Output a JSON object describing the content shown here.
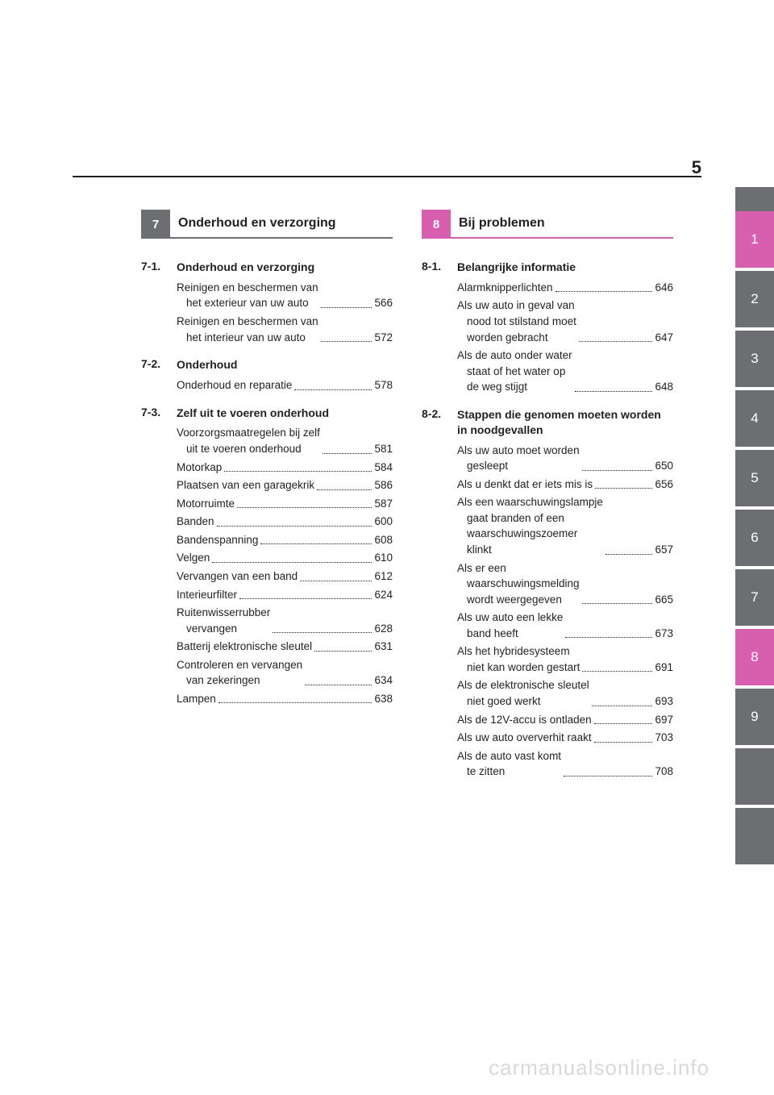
{
  "page_number": "5",
  "watermark": "carmanualsonline.info",
  "colors": {
    "grey": "#6d6e71",
    "pink": "#d85fb0",
    "text": "#231f20",
    "watermark": "#d9d9d9"
  },
  "left_section": {
    "number": "7",
    "title": "Onderhoud en verzorging",
    "subsections": [
      {
        "num": "7-1.",
        "title": "Onderhoud en verzorging",
        "entries": [
          {
            "lines": [
              "Reinigen en beschermen van",
              "het exterieur van uw auto"
            ],
            "page": "566"
          },
          {
            "lines": [
              "Reinigen en beschermen van",
              "het interieur van uw auto"
            ],
            "page": "572"
          }
        ]
      },
      {
        "num": "7-2.",
        "title": "Onderhoud",
        "entries": [
          {
            "lines": [
              "Onderhoud en reparatie"
            ],
            "page": "578"
          }
        ]
      },
      {
        "num": "7-3.",
        "title": "Zelf uit te voeren onderhoud",
        "entries": [
          {
            "lines": [
              "Voorzorgsmaatregelen bij zelf",
              "uit te voeren onderhoud"
            ],
            "page": "581"
          },
          {
            "lines": [
              "Motorkap"
            ],
            "page": "584"
          },
          {
            "lines": [
              "Plaatsen van een garagekrik"
            ],
            "page": "586"
          },
          {
            "lines": [
              "Motorruimte"
            ],
            "page": "587"
          },
          {
            "lines": [
              "Banden"
            ],
            "page": "600"
          },
          {
            "lines": [
              "Bandenspanning"
            ],
            "page": "608"
          },
          {
            "lines": [
              "Velgen"
            ],
            "page": "610"
          },
          {
            "lines": [
              "Vervangen van een band"
            ],
            "page": "612"
          },
          {
            "lines": [
              "Interieurfilter"
            ],
            "page": "624"
          },
          {
            "lines": [
              "Ruitenwisserrubber",
              "vervangen"
            ],
            "page": "628"
          },
          {
            "lines": [
              "Batterij elektronische sleutel"
            ],
            "page": "631"
          },
          {
            "lines": [
              "Controleren en vervangen",
              "van zekeringen"
            ],
            "page": "634"
          },
          {
            "lines": [
              "Lampen"
            ],
            "page": "638"
          }
        ]
      }
    ]
  },
  "right_section": {
    "number": "8",
    "title": "Bij problemen",
    "subsections": [
      {
        "num": "8-1.",
        "title": "Belangrijke informatie",
        "entries": [
          {
            "lines": [
              "Alarmknipperlichten"
            ],
            "page": "646"
          },
          {
            "lines": [
              "Als uw auto in geval van",
              "nood tot stilstand moet",
              "worden gebracht"
            ],
            "page": "647"
          },
          {
            "lines": [
              "Als de auto onder water",
              "staat of het water op",
              "de weg stijgt"
            ],
            "page": "648"
          }
        ]
      },
      {
        "num": "8-2.",
        "title": "Stappen die genomen moeten worden in noodgevallen",
        "entries": [
          {
            "lines": [
              "Als uw auto moet worden",
              "gesleept"
            ],
            "page": "650"
          },
          {
            "lines": [
              "Als u denkt dat er iets mis is"
            ],
            "page": "656"
          },
          {
            "lines": [
              "Als een waarschuwingslampje",
              "gaat branden of een",
              "waarschuwingszoemer",
              "klinkt"
            ],
            "page": "657"
          },
          {
            "lines": [
              "Als er een",
              "waarschuwingsmelding",
              "wordt weergegeven"
            ],
            "page": "665"
          },
          {
            "lines": [
              "Als uw auto een lekke",
              "band heeft"
            ],
            "page": "673"
          },
          {
            "lines": [
              "Als het hybridesysteem",
              "niet kan worden gestart"
            ],
            "page": "691"
          },
          {
            "lines": [
              "Als de elektronische sleutel",
              "niet goed werkt"
            ],
            "page": "693"
          },
          {
            "lines": [
              "Als de 12V-accu is ontladen"
            ],
            "page": "697"
          },
          {
            "lines": [
              "Als uw auto oververhit raakt"
            ],
            "page": "703"
          },
          {
            "lines": [
              "Als de auto vast komt",
              "te zitten"
            ],
            "page": "708"
          }
        ]
      }
    ]
  },
  "side_tabs": [
    {
      "label": "1",
      "style": "pink"
    },
    {
      "label": "2",
      "style": "grey"
    },
    {
      "label": "3",
      "style": "grey"
    },
    {
      "label": "4",
      "style": "grey"
    },
    {
      "label": "5",
      "style": "grey"
    },
    {
      "label": "6",
      "style": "grey"
    },
    {
      "label": "7",
      "style": "grey"
    },
    {
      "label": "8",
      "style": "pink"
    },
    {
      "label": "9",
      "style": "grey"
    },
    {
      "label": "",
      "style": "blank"
    },
    {
      "label": "",
      "style": "blank"
    }
  ]
}
